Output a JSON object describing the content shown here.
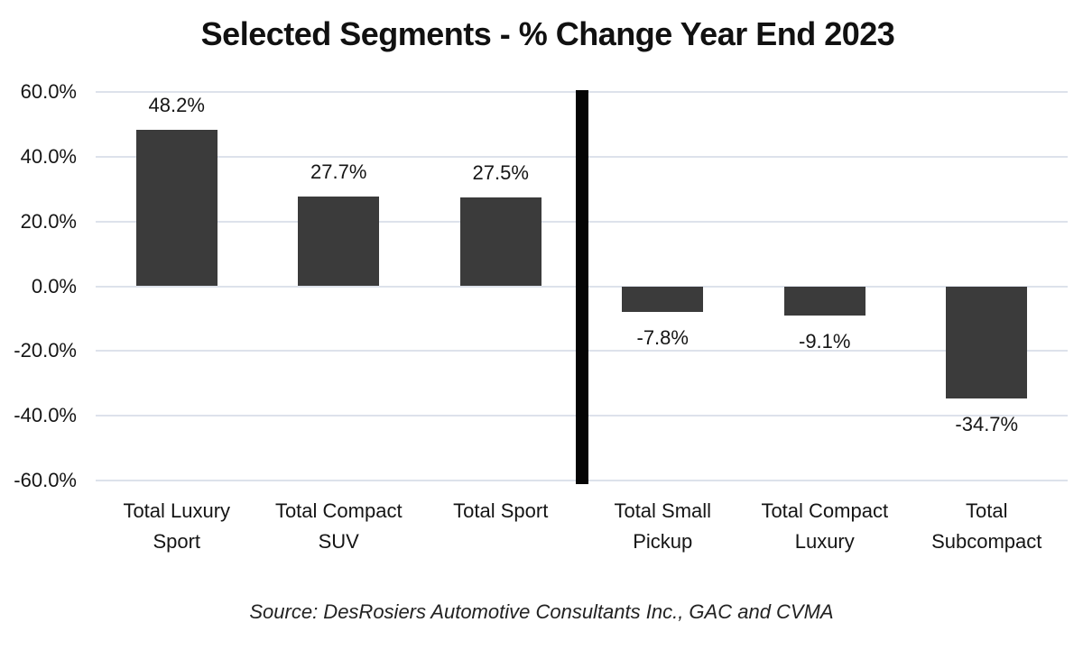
{
  "title": "Selected Segments - % Change Year End 2023",
  "source_note": "Source: DesRosiers Automotive Consultants Inc., GAC and CVMA",
  "chart_data": {
    "type": "bar",
    "title": "Selected Segments - % Change Year End 2023",
    "categories": [
      "Total Luxury Sport",
      "Total Compact SUV",
      "Total Sport",
      "Total Small Pickup",
      "Total Compact Luxury",
      "Total Subcompact"
    ],
    "category_lines": [
      [
        "Total Luxury",
        "Sport"
      ],
      [
        "Total Compact",
        "SUV"
      ],
      [
        "Total Sport"
      ],
      [
        "Total Small",
        "Pickup"
      ],
      [
        "Total Compact",
        "Luxury"
      ],
      [
        "Total",
        "Subcompact"
      ]
    ],
    "values": [
      48.2,
      27.7,
      27.5,
      -7.8,
      -9.1,
      -34.7
    ],
    "data_labels": [
      "48.2%",
      "27.7%",
      "27.5%",
      "-7.8%",
      "-9.1%",
      "-34.7%"
    ],
    "ylim": [
      -60,
      60
    ],
    "yticks": [
      60,
      40,
      20,
      0,
      -20,
      -40,
      -60
    ],
    "ytick_labels": [
      "60.0%",
      "40.0%",
      "20.0%",
      "0.0%",
      "-20.0%",
      "-40.0%",
      "-60.0%"
    ],
    "grid": true,
    "legend": false,
    "xlabel": "",
    "ylabel": "",
    "separator_after_index": 2,
    "colors": {
      "bar": "#3B3B3B",
      "gridline": "#DDE2EB",
      "separator": "#050505",
      "text": "#151515"
    }
  }
}
